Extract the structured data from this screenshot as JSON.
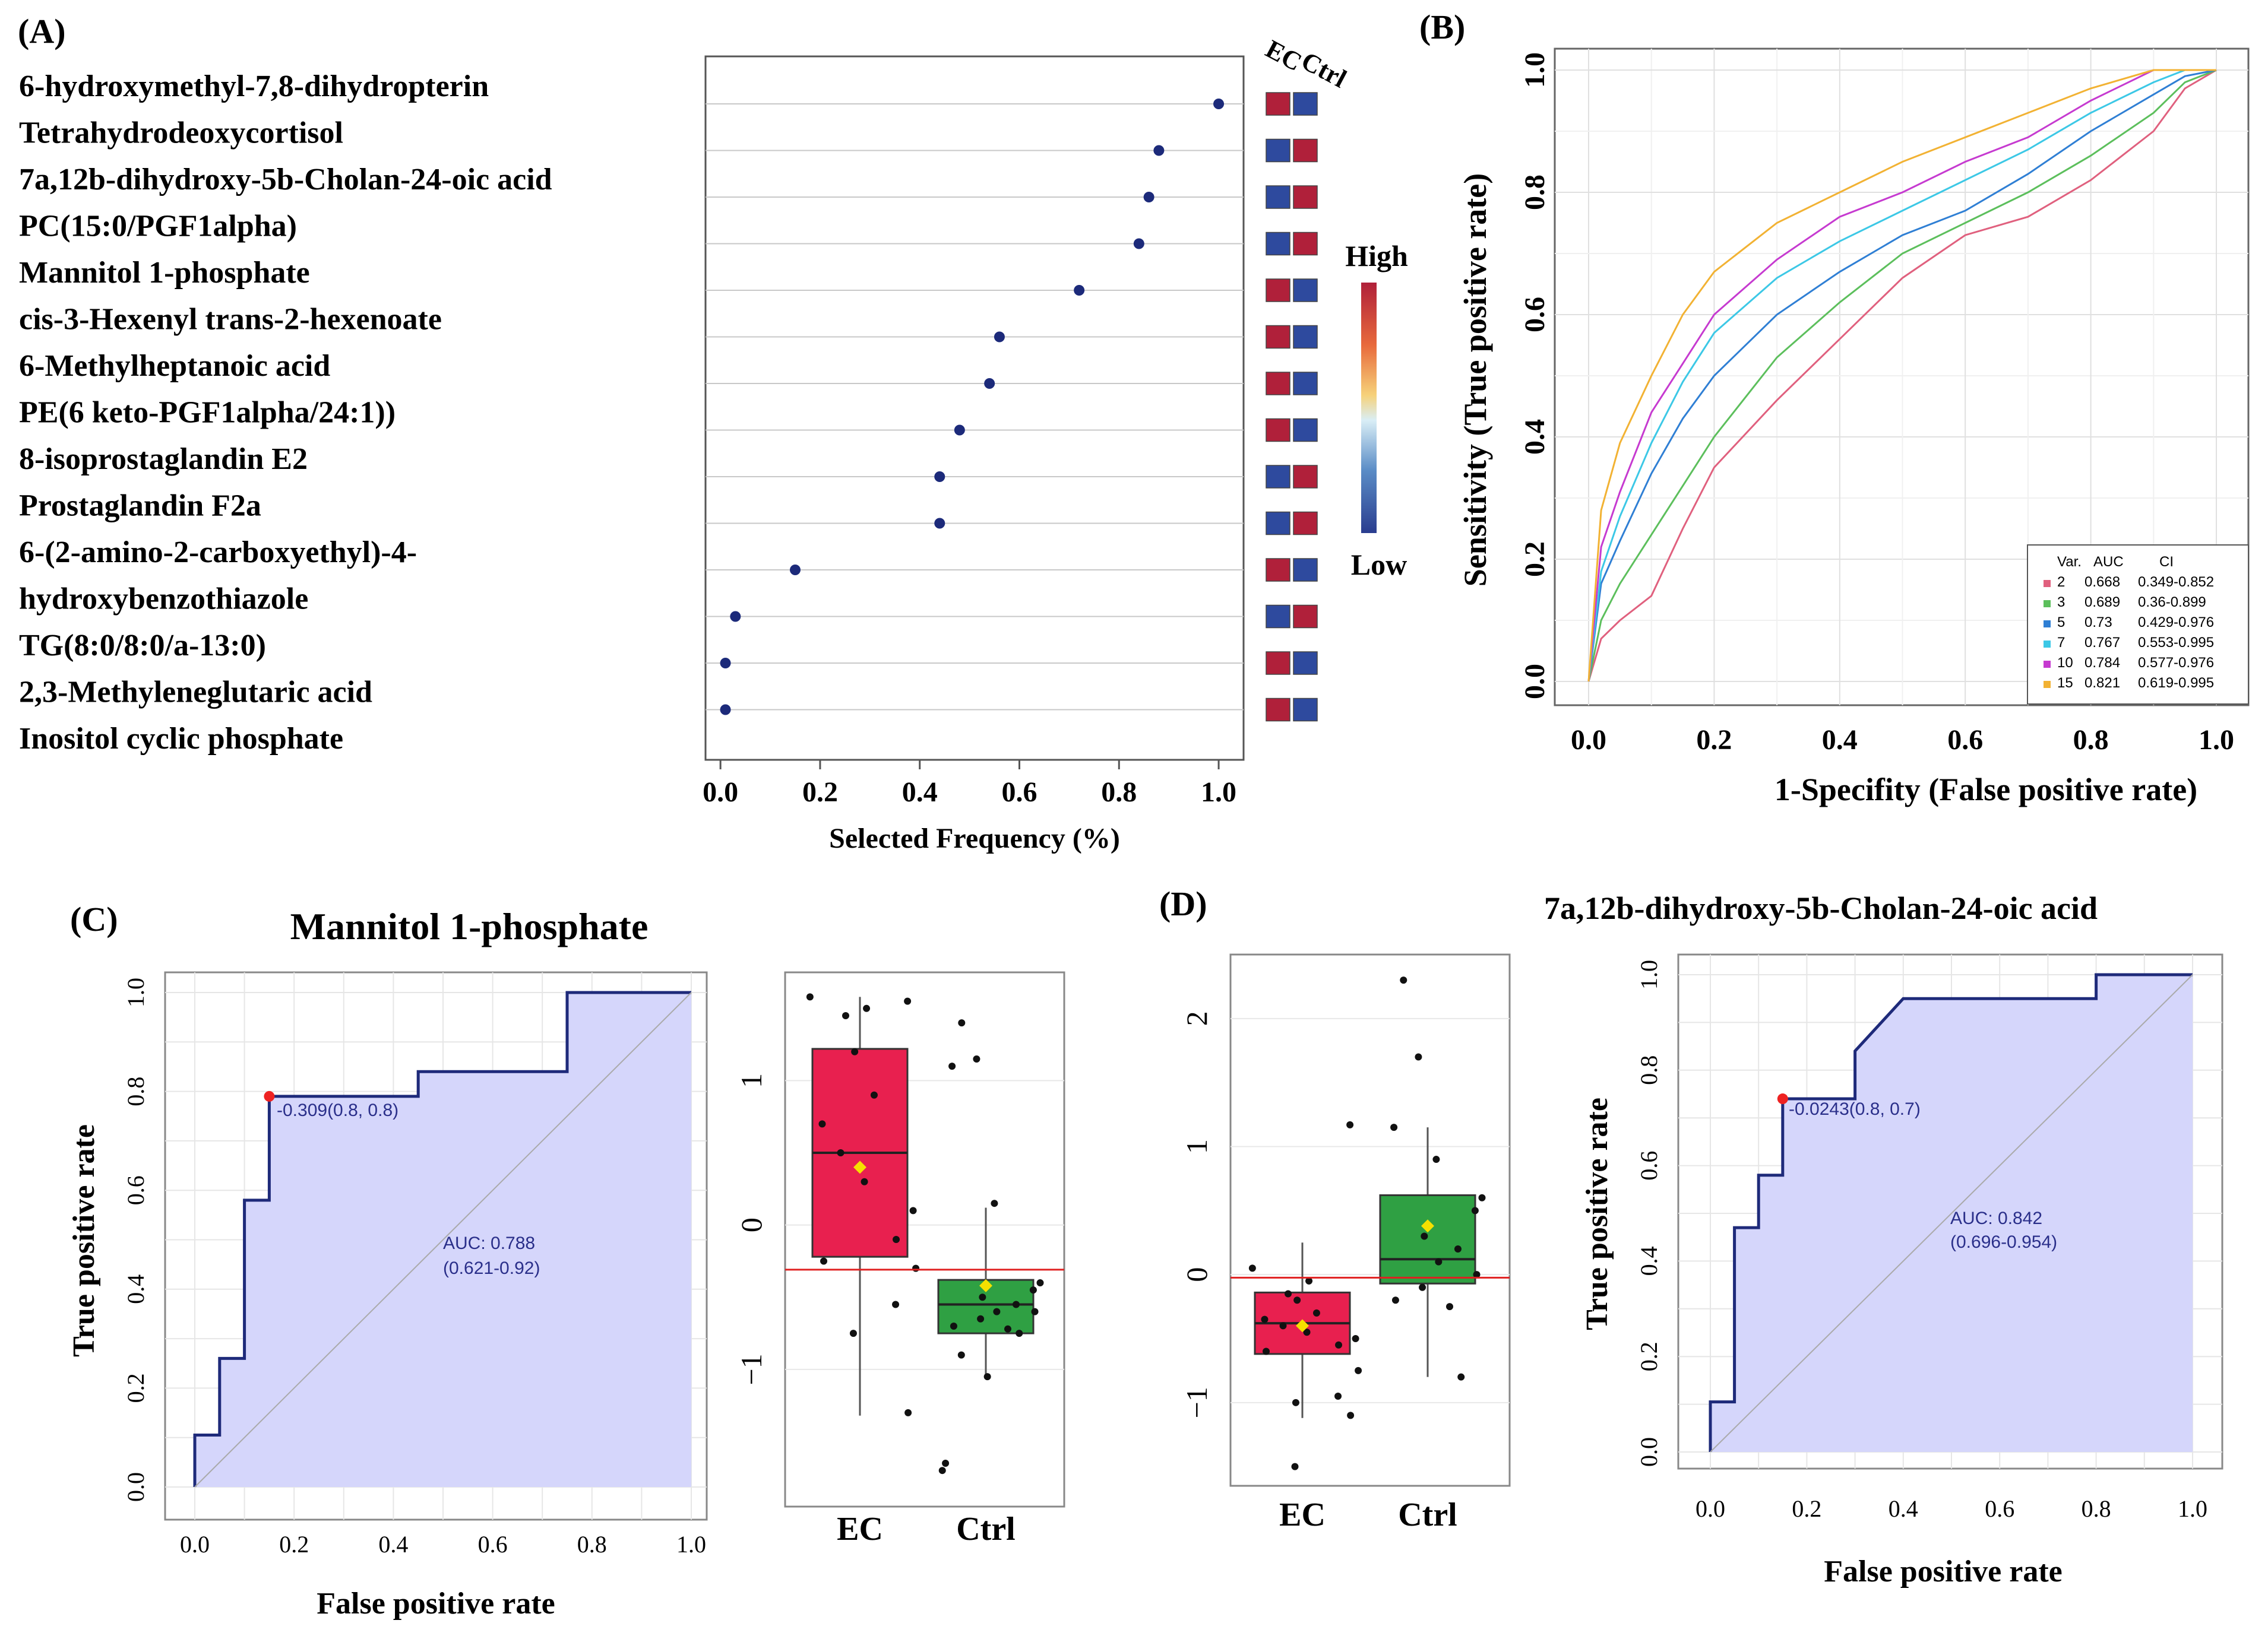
{
  "panels": {
    "A": {
      "label": "(A)",
      "xlabel": "Selected Frequency (%)",
      "xticks": [
        "0.0",
        "0.2",
        "0.4",
        "0.6",
        "0.8",
        "1.0"
      ],
      "xlim": [
        -0.03,
        1.05
      ],
      "metabolites": [
        [
          "6-hydroxymethyl-7,8-dihydropterin"
        ],
        [
          "Tetrahydrodeoxycortisol"
        ],
        [
          "7a,12b-dihydroxy-5b-Cholan-24-oic  acid"
        ],
        [
          "PC(15:0/PGF1alpha)"
        ],
        [
          "Mannitol 1-phosphate"
        ],
        [
          "cis-3-Hexenyl trans-2-hexenoate"
        ],
        [
          "6-Methylheptanoic  acid"
        ],
        [
          "PE(6 keto-PGF1alpha/24:1))"
        ],
        [
          "8-isoprostaglandin  E2"
        ],
        [
          "Prostaglandin  F2a"
        ],
        [
          "6-(2-amino-2-carboxyethyl)-4-",
          "hydroxybenzothiazole"
        ],
        [
          "TG(8:0/8:0/a-13:0)"
        ],
        [
          "2,3-Methyleneglutaric  acid"
        ],
        [
          "Inositol cyclic phosphate"
        ]
      ],
      "frequencies": [
        1.0,
        0.88,
        0.86,
        0.84,
        0.72,
        0.56,
        0.54,
        0.48,
        0.44,
        0.44,
        0.15,
        0.03,
        0.01,
        0.01
      ],
      "heat_headers": [
        "EC",
        "Ctrl"
      ],
      "heat_ec_high": [
        true,
        false,
        false,
        false,
        true,
        true,
        true,
        true,
        false,
        false,
        true,
        false,
        true,
        true
      ],
      "legend_high": "High",
      "legend_low": "Low",
      "colors": {
        "high": "#b0203a",
        "low": "#2e4a9e",
        "dot": "#1c2a7a"
      }
    },
    "B": {
      "label": "(B)",
      "xlabel": "1-Specifity (False positive rate)",
      "ylabel": "Sensitivity (True positive rate)",
      "ticks": [
        "0.0",
        "0.2",
        "0.4",
        "0.6",
        "0.8",
        "1.0"
      ],
      "legend_header": [
        "Var.",
        "AUC",
        "CI"
      ],
      "legend_rows": [
        [
          "2",
          "0.668",
          "0.349-0.852"
        ],
        [
          "3",
          "0.689",
          "0.36-0.899"
        ],
        [
          "5",
          "0.73",
          "0.429-0.976"
        ],
        [
          "7",
          "0.767",
          "0.553-0.995"
        ],
        [
          "10",
          "0.784",
          "0.577-0.976"
        ],
        [
          "15",
          "0.821",
          "0.619-0.995"
        ]
      ]
    },
    "C": {
      "label": "(C)",
      "title": "Mannitol 1-phosphate",
      "xlabel": "False positive rate",
      "ylabel": "True positive rate",
      "ticks": [
        "0.0",
        "0.2",
        "0.4",
        "0.6",
        "0.8",
        "1.0"
      ],
      "cutoff_text": "-0.309(0.8, 0.8)",
      "auc_text": "AUC: 0.788",
      "ci_text": "(0.621-0.92)",
      "box_groups": [
        "EC",
        "Ctrl"
      ],
      "box_yticks": [
        "-1",
        "0",
        "1"
      ]
    },
    "D": {
      "label": "(D)",
      "title": "7a,12b-dihydroxy-5b-Cholan-24-oic  acid",
      "xlabel": "False positive rate",
      "ylabel": "True positive rate",
      "ticks": [
        "0.0",
        "0.2",
        "0.4",
        "0.6",
        "0.8",
        "1.0"
      ],
      "cutoff_text": "-0.0243(0.8, 0.7)",
      "auc_text": "AUC: 0.842",
      "ci_text": "(0.696-0.954)",
      "box_groups": [
        "EC",
        "Ctrl"
      ],
      "box_yticks": [
        "-1",
        "0",
        "1",
        "2"
      ]
    }
  },
  "chart_data": [
    {
      "type": "scatter",
      "panel": "A",
      "title": "",
      "xlabel": "Selected Frequency (%)",
      "ylabel": "",
      "xlim": [
        0,
        1
      ],
      "categories": [
        "6-hydroxymethyl-7,8-dihydropterin",
        "Tetrahydrodeoxycortisol",
        "7a,12b-dihydroxy-5b-Cholan-24-oic acid",
        "PC(15:0/PGF1alpha)",
        "Mannitol 1-phosphate",
        "cis-3-Hexenyl trans-2-hexenoate",
        "6-Methylheptanoic acid",
        "PE(6 keto-PGF1alpha/24:1))",
        "8-isoprostaglandin E2",
        "Prostaglandin F2a",
        "6-(2-amino-2-carboxyethyl)-4-hydroxybenzothiazole",
        "TG(8:0/8:0/a-13:0)",
        "2,3-Methyleneglutaric acid",
        "Inositol cyclic phosphate"
      ],
      "values": [
        1.0,
        0.88,
        0.86,
        0.84,
        0.72,
        0.56,
        0.54,
        0.48,
        0.44,
        0.44,
        0.15,
        0.03,
        0.01,
        0.01
      ]
    },
    {
      "type": "line",
      "panel": "B",
      "xlabel": "1-Specifity (False positive rate)",
      "ylabel": "Sensitivity (True positive rate)",
      "xlim": [
        0,
        1
      ],
      "ylim": [
        0,
        1
      ],
      "series": [
        {
          "name": "2",
          "auc": 0.668,
          "color": "#e0607e",
          "x": [
            0,
            0.02,
            0.05,
            0.1,
            0.15,
            0.2,
            0.3,
            0.4,
            0.5,
            0.6,
            0.7,
            0.8,
            0.9,
            0.95,
            1.0
          ],
          "y": [
            0,
            0.07,
            0.1,
            0.14,
            0.25,
            0.35,
            0.46,
            0.56,
            0.66,
            0.73,
            0.76,
            0.82,
            0.9,
            0.97,
            1.0
          ]
        },
        {
          "name": "3",
          "auc": 0.689,
          "color": "#5cbf5c",
          "x": [
            0,
            0.02,
            0.05,
            0.1,
            0.15,
            0.2,
            0.3,
            0.4,
            0.5,
            0.6,
            0.7,
            0.8,
            0.9,
            0.95,
            1.0
          ],
          "y": [
            0,
            0.1,
            0.16,
            0.24,
            0.32,
            0.4,
            0.53,
            0.62,
            0.7,
            0.75,
            0.8,
            0.86,
            0.93,
            0.98,
            1.0
          ]
        },
        {
          "name": "5",
          "auc": 0.73,
          "color": "#2f7fd4",
          "x": [
            0,
            0.02,
            0.05,
            0.1,
            0.15,
            0.2,
            0.3,
            0.4,
            0.5,
            0.6,
            0.7,
            0.8,
            0.9,
            0.95,
            1.0
          ],
          "y": [
            0,
            0.16,
            0.23,
            0.34,
            0.43,
            0.5,
            0.6,
            0.67,
            0.73,
            0.77,
            0.83,
            0.9,
            0.96,
            0.99,
            1.0
          ]
        },
        {
          "name": "7",
          "auc": 0.767,
          "color": "#3cc8e6",
          "x": [
            0,
            0.02,
            0.05,
            0.1,
            0.15,
            0.2,
            0.3,
            0.4,
            0.5,
            0.6,
            0.7,
            0.8,
            0.9,
            0.95,
            1.0
          ],
          "y": [
            0,
            0.18,
            0.27,
            0.39,
            0.49,
            0.57,
            0.66,
            0.72,
            0.77,
            0.82,
            0.87,
            0.93,
            0.98,
            1.0,
            1.0
          ]
        },
        {
          "name": "10",
          "auc": 0.784,
          "color": "#c63ad0",
          "x": [
            0,
            0.02,
            0.05,
            0.1,
            0.15,
            0.2,
            0.3,
            0.4,
            0.5,
            0.6,
            0.7,
            0.8,
            0.9,
            0.95,
            1.0
          ],
          "y": [
            0,
            0.22,
            0.31,
            0.44,
            0.52,
            0.6,
            0.69,
            0.76,
            0.8,
            0.85,
            0.89,
            0.95,
            1.0,
            1.0,
            1.0
          ]
        },
        {
          "name": "15",
          "auc": 0.821,
          "color": "#f2b233",
          "x": [
            0,
            0.02,
            0.05,
            0.1,
            0.15,
            0.2,
            0.3,
            0.4,
            0.5,
            0.6,
            0.7,
            0.8,
            0.9,
            0.95,
            1.0
          ],
          "y": [
            0,
            0.28,
            0.39,
            0.5,
            0.6,
            0.67,
            0.75,
            0.8,
            0.85,
            0.89,
            0.93,
            0.97,
            1.0,
            1.0,
            1.0
          ]
        }
      ]
    },
    {
      "type": "area",
      "panel": "C",
      "title": "Mannitol 1-phosphate",
      "xlabel": "False positive rate",
      "ylabel": "True positive rate",
      "xlim": [
        0,
        1
      ],
      "ylim": [
        0,
        1
      ],
      "x": [
        0,
        0,
        0.05,
        0.05,
        0.1,
        0.1,
        0.15,
        0.15,
        0.45,
        0.45,
        0.75,
        0.75,
        1.0,
        1.0
      ],
      "y": [
        0,
        0.105,
        0.105,
        0.26,
        0.26,
        0.58,
        0.58,
        0.79,
        0.79,
        0.84,
        0.84,
        1.0,
        1.0,
        0
      ],
      "cutoff_point": [
        0.15,
        0.79
      ],
      "auc": 0.788,
      "ci": [
        0.621,
        0.92
      ]
    },
    {
      "type": "box",
      "panel": "C",
      "ylim": [
        -1.95,
        1.75
      ],
      "groups": [
        {
          "name": "EC",
          "q1": -0.22,
          "median": 0.5,
          "q3": 1.22,
          "whisker_low": -1.32,
          "whisker_high": 1.58,
          "mean": 0.4,
          "color": "#e8204f",
          "points": [
            1.55,
            1.58,
            1.5,
            1.45,
            1.2,
            0.9,
            0.7,
            0.5,
            0.3,
            0.1,
            -0.1,
            -0.25,
            -0.3,
            -0.55,
            -0.75,
            -1.3
          ]
        },
        {
          "name": "Ctrl",
          "q1": -0.75,
          "median": -0.55,
          "q3": -0.38,
          "whisker_low": -1.05,
          "whisker_high": 0.12,
          "mean": -0.42,
          "color": "#2fa043",
          "points": [
            1.4,
            1.15,
            1.1,
            0.15,
            -0.4,
            -0.45,
            -0.5,
            -0.55,
            -0.6,
            -0.6,
            -0.65,
            -0.7,
            -0.72,
            -0.75,
            -0.9,
            -1.05,
            -1.65,
            -1.7
          ]
        }
      ],
      "reference_line": -0.309
    },
    {
      "type": "box",
      "panel": "D",
      "ylim": [
        -1.65,
        2.5
      ],
      "groups": [
        {
          "name": "EC",
          "q1": -0.62,
          "median": -0.38,
          "q3": -0.14,
          "whisker_low": -1.12,
          "whisker_high": 0.25,
          "mean": -0.4,
          "color": "#e8204f",
          "points": [
            1.17,
            0.05,
            -0.05,
            -0.15,
            -0.2,
            -0.3,
            -0.35,
            -0.4,
            -0.45,
            -0.5,
            -0.55,
            -0.6,
            -0.75,
            -0.95,
            -1.0,
            -1.1,
            -1.5
          ]
        },
        {
          "name": "Ctrl",
          "q1": -0.07,
          "median": 0.12,
          "q3": 0.62,
          "whisker_low": -0.8,
          "whisker_high": 1.15,
          "mean": 0.38,
          "color": "#2fa043",
          "points": [
            2.3,
            1.7,
            1.15,
            0.9,
            0.6,
            0.5,
            0.3,
            0.2,
            0.1,
            0.0,
            -0.1,
            -0.2,
            -0.25,
            -0.8
          ]
        }
      ],
      "reference_line": -0.0243
    },
    {
      "type": "area",
      "panel": "D",
      "title": "7a,12b-dihydroxy-5b-Cholan-24-oic acid",
      "xlabel": "False positive rate",
      "ylabel": "True positive rate",
      "xlim": [
        0,
        1
      ],
      "ylim": [
        0,
        1
      ],
      "x": [
        0,
        0,
        0.05,
        0.05,
        0.1,
        0.1,
        0.15,
        0.15,
        0.3,
        0.3,
        0.4,
        0.8,
        0.8,
        1.0,
        1.0
      ],
      "y": [
        0,
        0.105,
        0.105,
        0.47,
        0.47,
        0.58,
        0.58,
        0.74,
        0.74,
        0.84,
        0.95,
        0.95,
        1.0,
        1.0,
        0
      ],
      "cutoff_point": [
        0.15,
        0.74
      ],
      "auc": 0.842,
      "ci": [
        0.696,
        0.954
      ]
    }
  ]
}
